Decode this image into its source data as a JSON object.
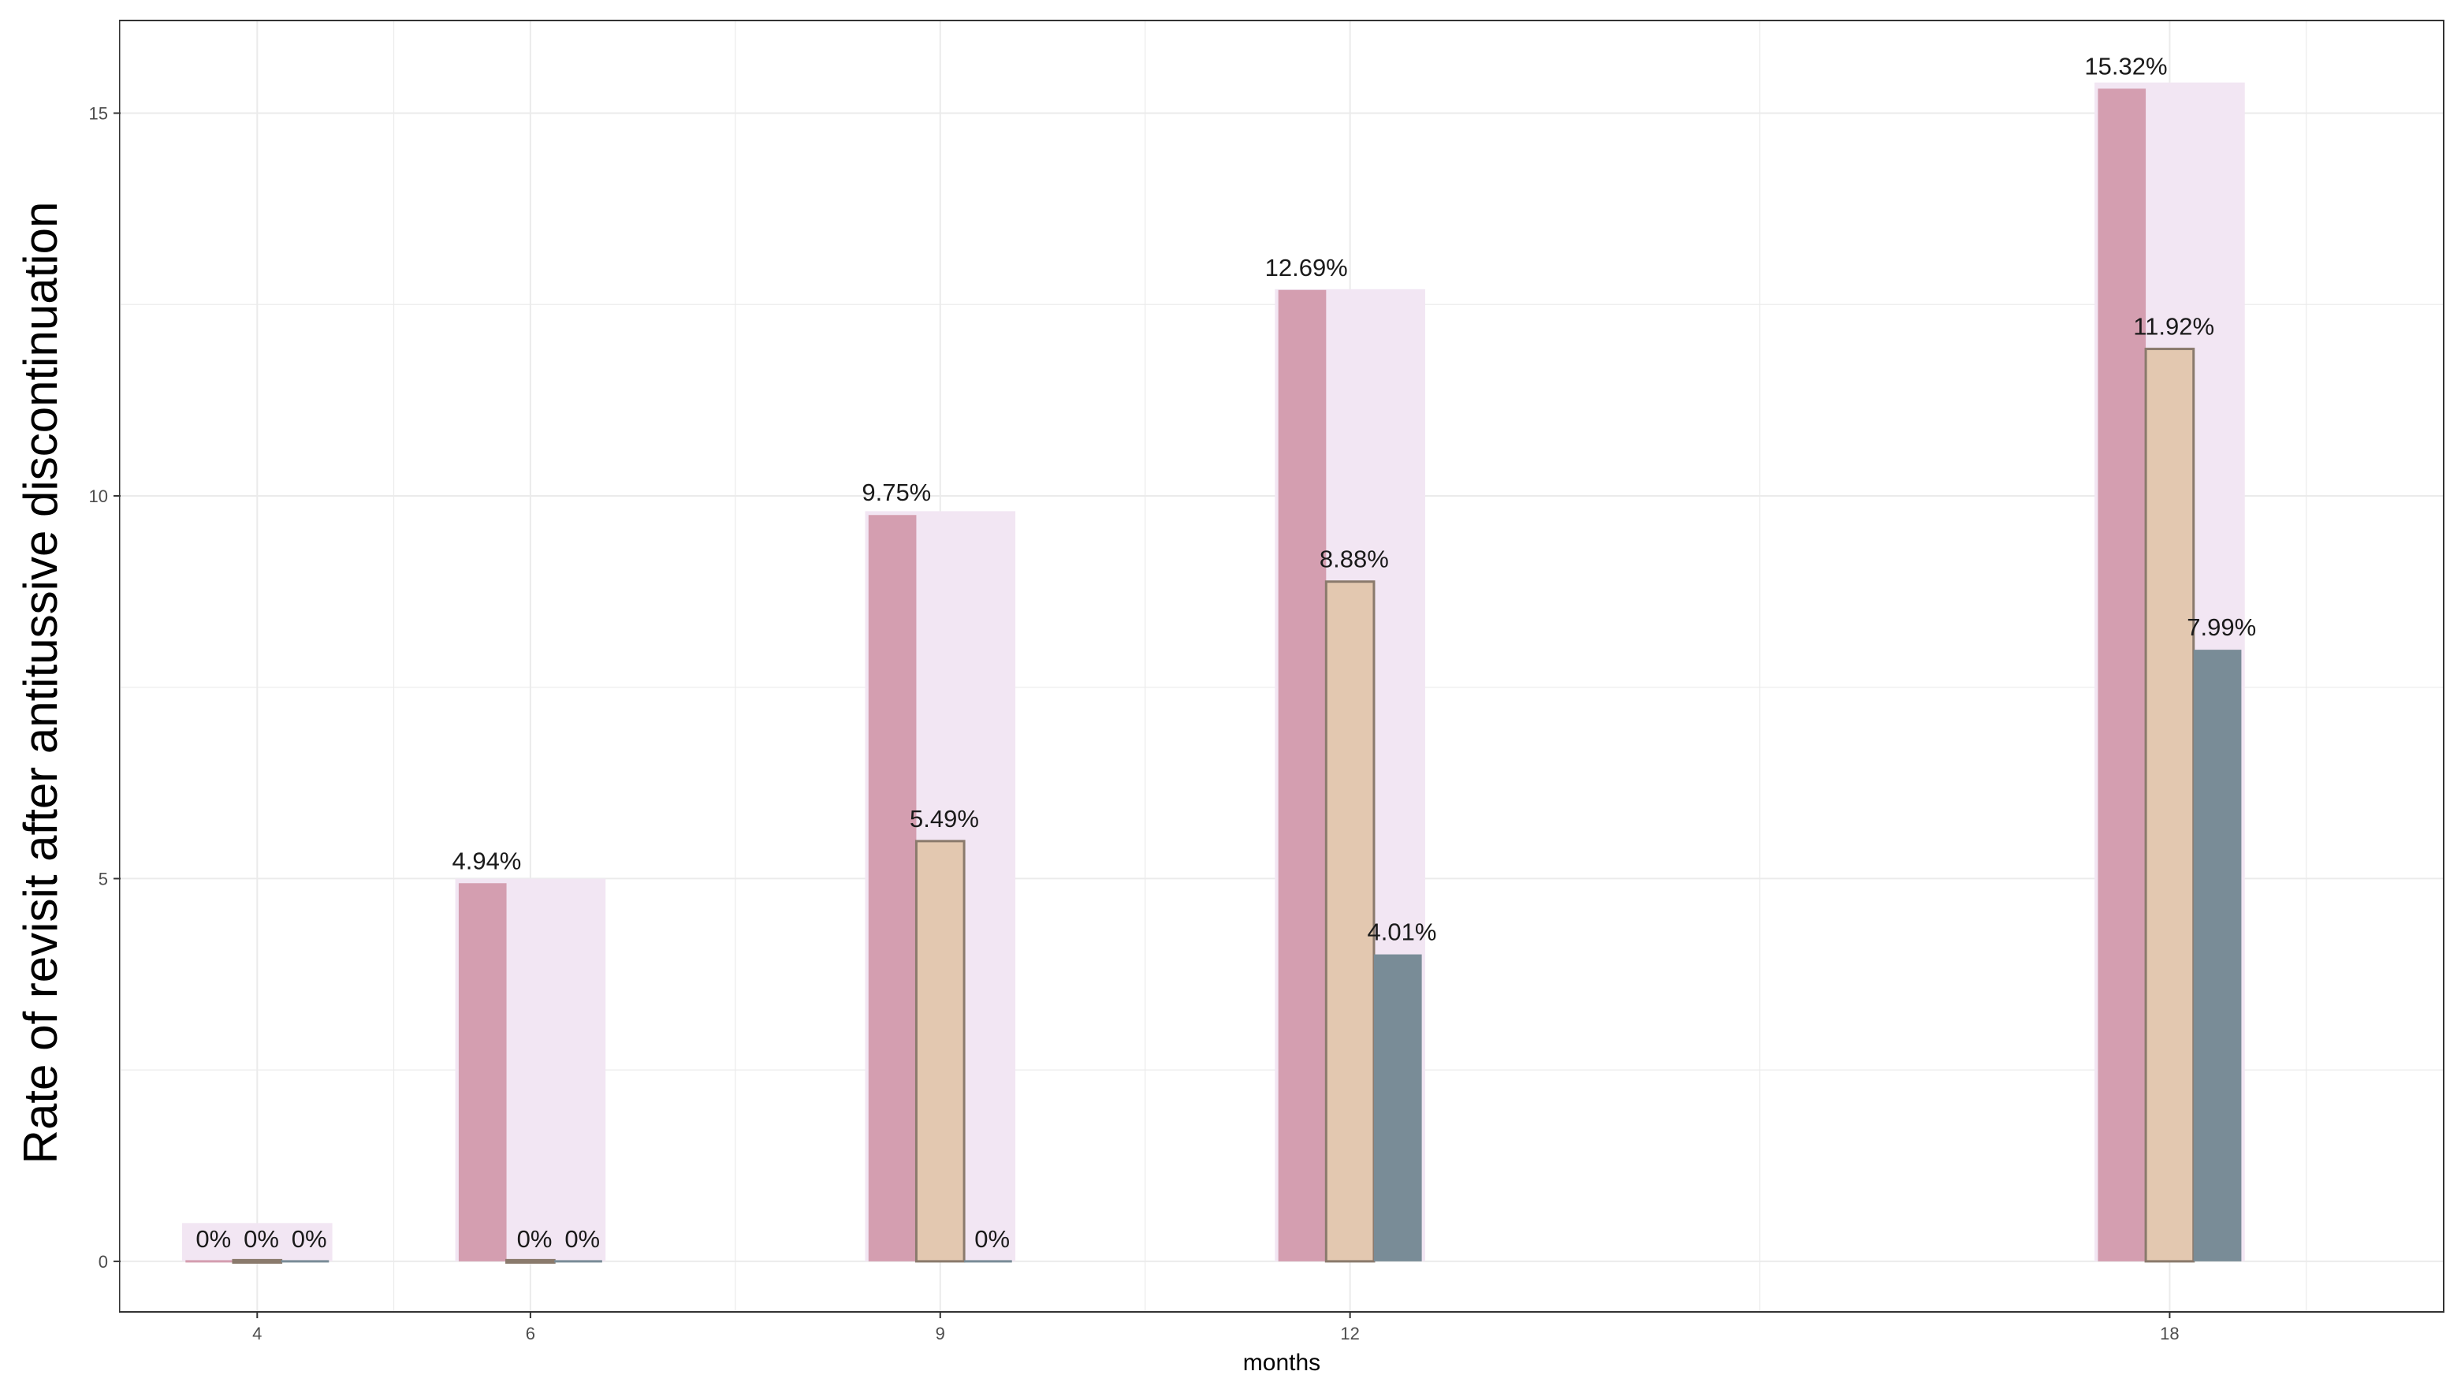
{
  "chart_data": {
    "type": "bar",
    "xlabel": "months",
    "ylabel": "Rate of revisit after antitussive discontinuation",
    "x": [
      4,
      6,
      9,
      12,
      18
    ],
    "xlim": [
      3.0,
      20.0
    ],
    "ylim": [
      -0.65,
      16.2
    ],
    "yticks": [
      0,
      5,
      10,
      15
    ],
    "grid": true,
    "legend": "none",
    "series": [
      {
        "values": [
          0,
          4.94,
          9.75,
          12.69,
          15.32
        ],
        "labels": [
          "0%",
          "4.94%",
          "9.75%",
          "12.69%",
          "15.32%"
        ],
        "color": "#d49eb0",
        "outline": "none"
      },
      {
        "values": [
          0,
          0,
          5.49,
          8.88,
          11.92
        ],
        "labels": [
          "0%",
          "0%",
          "5.49%",
          "8.88%",
          "11.92%"
        ],
        "color": "#e3c8b0",
        "outline": "#8a7a6c"
      },
      {
        "values": [
          0,
          0,
          0,
          4.01,
          7.99
        ],
        "labels": [
          "0%",
          "0%",
          "0%",
          "4.01%",
          "7.99%"
        ],
        "color": "#798c97",
        "outline": "none"
      }
    ],
    "background_bars": {
      "color": "#f2e6f3",
      "values": [
        0.5,
        5.0,
        9.8,
        12.7,
        15.4
      ]
    }
  }
}
